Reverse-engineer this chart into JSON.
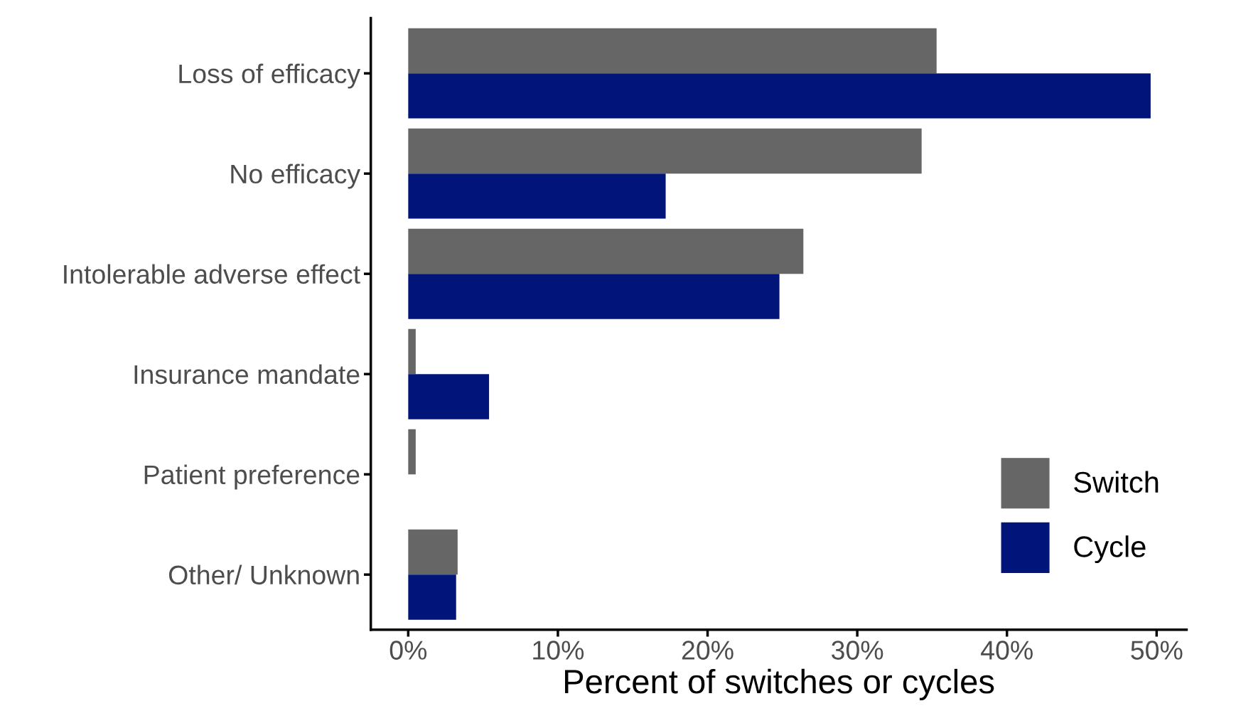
{
  "chart_data": {
    "type": "bar",
    "orientation": "horizontal",
    "xlabel": "Percent of switches or cycles",
    "categories": [
      "Loss of efficacy",
      "No efficacy",
      "Intolerable adverse effect",
      "Insurance mandate",
      "Patient preference",
      "Other/ Unknown"
    ],
    "series": [
      {
        "name": "Switch",
        "color": "#666666",
        "values": [
          35.3,
          34.3,
          26.4,
          0.5,
          0.5,
          3.3
        ]
      },
      {
        "name": "Cycle",
        "color": "#001479",
        "values": [
          49.6,
          17.2,
          24.8,
          5.4,
          0,
          3.2
        ]
      }
    ],
    "xlim": [
      -2.5,
      52
    ],
    "xticks": [
      {
        "value": 0,
        "label": "0%"
      },
      {
        "value": 10,
        "label": "10%"
      },
      {
        "value": 20,
        "label": "20%"
      },
      {
        "value": 30,
        "label": "30%"
      },
      {
        "value": 40,
        "label": "40%"
      },
      {
        "value": 50,
        "label": "50%"
      }
    ],
    "grid": false,
    "legend": "bottom right"
  }
}
